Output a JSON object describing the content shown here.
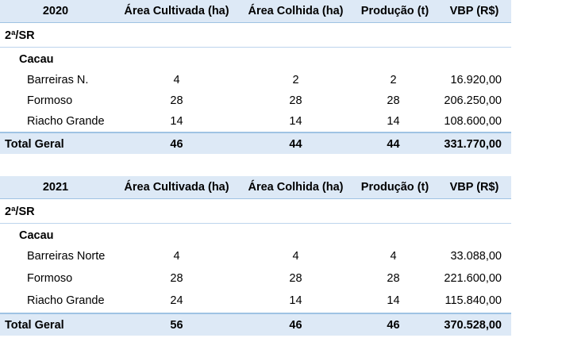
{
  "columns": [
    "Área Cultivada (ha)",
    "Área Colhida (ha)",
    "Produção (t)",
    "VBP (R$)"
  ],
  "tables": [
    {
      "year": "2020",
      "region": "2ª/SR",
      "crop": "Cacau",
      "rows": [
        {
          "name": "Barreiras N.",
          "cult": "4",
          "colh": "2",
          "prod": "2",
          "vbp": "16.920,00"
        },
        {
          "name": "Formoso",
          "cult": "28",
          "colh": "28",
          "prod": "28",
          "vbp": "206.250,00"
        },
        {
          "name": "Riacho Grande",
          "cult": "14",
          "colh": "14",
          "prod": "14",
          "vbp": "108.600,00"
        }
      ],
      "total": {
        "label": "Total Geral",
        "cult": "46",
        "colh": "44",
        "prod": "44",
        "vbp": "331.770,00"
      }
    },
    {
      "year": "2021",
      "region": "2ª/SR",
      "crop": "Cacau",
      "rows": [
        {
          "name": "Barreiras Norte",
          "cult": "4",
          "colh": "4",
          "prod": "4",
          "vbp": "33.088,00"
        },
        {
          "name": "Formoso",
          "cult": "28",
          "colh": "28",
          "prod": "28",
          "vbp": "221.600,00"
        },
        {
          "name": "Riacho Grande",
          "cult": "24",
          "colh": "14",
          "prod": "14",
          "vbp": "115.840,00"
        }
      ],
      "total": {
        "label": "Total Geral",
        "cult": "56",
        "colh": "46",
        "prod": "46",
        "vbp": "370.528,00"
      }
    }
  ]
}
